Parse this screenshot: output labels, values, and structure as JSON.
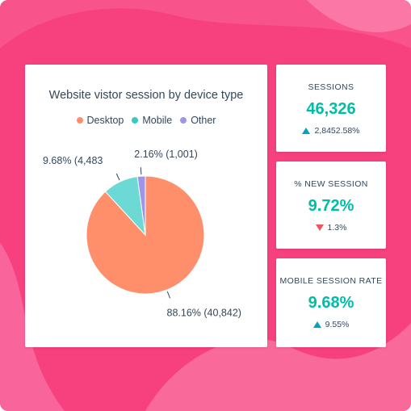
{
  "chart_data": {
    "type": "pie",
    "title": "Website vistor session by device type",
    "legend": [
      "Desktop",
      "Mobile",
      "Other"
    ],
    "legend_position": "top",
    "series": [
      {
        "name": "Desktop",
        "value": 40842,
        "label": "88.16% (40,842)",
        "color": "#ff8f6b"
      },
      {
        "name": "Mobile",
        "value": 4483,
        "label": "9.68% (4,483",
        "color": "#6cd9d4"
      },
      {
        "name": "Other",
        "value": 1001,
        "label": "2.16% (1,001)",
        "color": "#9c95e8"
      }
    ]
  },
  "stats": [
    {
      "label": "SESSIONS",
      "value": "46,326",
      "change": "2,8452.58%",
      "direction": "up"
    },
    {
      "label": "% NEW SESSION",
      "value": "9.72%",
      "change": "1.3%",
      "direction": "down"
    },
    {
      "label": "MOBILE SESSION RATE",
      "value": "9.68%",
      "change": "9.55%",
      "direction": "up"
    }
  ],
  "colors": {
    "background": "#f7417e",
    "accent": "#00bda5",
    "up": "#00a4bd",
    "down": "#f2545b"
  }
}
